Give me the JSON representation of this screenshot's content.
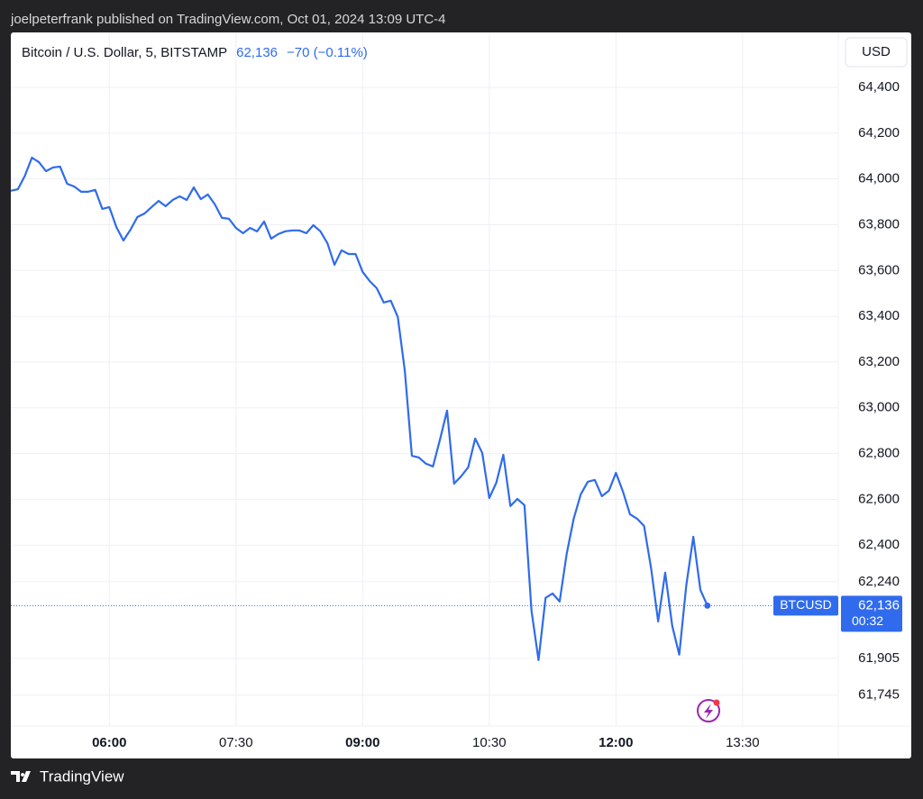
{
  "header": {
    "publisher": "joelpeterfrank published on TradingView.com, Oct 01, 2024 13:09 UTC-4"
  },
  "footer": {
    "brand": "TradingView"
  },
  "chart_data": {
    "type": "line",
    "title": "Bitcoin / U.S. Dollar, 5, BITSTAMP",
    "last_price": 62136,
    "last_price_label": "62,136",
    "change_label": "−70 (−0.11%)",
    "symbol": "BTCUSD",
    "countdown": "00:32",
    "currency": "USD",
    "grid": true,
    "xlim": [
      "04:50",
      "14:38"
    ],
    "xticks": [
      "06:00",
      "07:30",
      "09:00",
      "10:30",
      "12:00",
      "13:30"
    ],
    "ylim": [
      61610,
      64640
    ],
    "yticks": [
      {
        "value": 61745,
        "label": "61,745"
      },
      {
        "value": 61905,
        "label": "61,905"
      },
      {
        "value": 62240,
        "label": "62,240"
      },
      {
        "value": 62400,
        "label": "62,400"
      },
      {
        "value": 62600,
        "label": "62,600"
      },
      {
        "value": 62800,
        "label": "62,800"
      },
      {
        "value": 63000,
        "label": "63,000"
      },
      {
        "value": 63200,
        "label": "63,200"
      },
      {
        "value": 63400,
        "label": "63,400"
      },
      {
        "value": 63600,
        "label": "63,600"
      },
      {
        "value": 63800,
        "label": "63,800"
      },
      {
        "value": 64000,
        "label": "64,000"
      },
      {
        "value": 64200,
        "label": "64,200"
      },
      {
        "value": 64400,
        "label": "64,400"
      }
    ],
    "x": [
      "04:50",
      "04:55",
      "05:00",
      "05:05",
      "05:10",
      "05:15",
      "05:20",
      "05:25",
      "05:30",
      "05:35",
      "05:40",
      "05:45",
      "05:50",
      "05:55",
      "06:00",
      "06:05",
      "06:10",
      "06:15",
      "06:20",
      "06:25",
      "06:30",
      "06:35",
      "06:40",
      "06:45",
      "06:50",
      "06:55",
      "07:00",
      "07:05",
      "07:10",
      "07:15",
      "07:20",
      "07:25",
      "07:30",
      "07:35",
      "07:40",
      "07:45",
      "07:50",
      "07:55",
      "08:00",
      "08:05",
      "08:10",
      "08:15",
      "08:20",
      "08:25",
      "08:30",
      "08:35",
      "08:40",
      "08:45",
      "08:50",
      "08:55",
      "09:00",
      "09:05",
      "09:10",
      "09:15",
      "09:20",
      "09:25",
      "09:30",
      "09:35",
      "09:40",
      "09:45",
      "09:50",
      "09:55",
      "10:00",
      "10:05",
      "10:10",
      "10:15",
      "10:20",
      "10:25",
      "10:30",
      "10:35",
      "10:40",
      "10:45",
      "10:50",
      "10:55",
      "11:00",
      "11:05",
      "11:10",
      "11:15",
      "11:20",
      "11:25",
      "11:30",
      "11:35",
      "11:40",
      "11:45",
      "11:50",
      "11:55",
      "12:00",
      "12:05",
      "12:10",
      "12:15",
      "12:20",
      "12:25",
      "12:30",
      "12:35",
      "12:40",
      "12:45",
      "12:50",
      "12:55",
      "13:00",
      "13:05"
    ],
    "series": [
      {
        "name": "BTCUSD",
        "color": "#2f6bec",
        "values": [
          63948,
          63955,
          64014,
          64093,
          64073,
          64034,
          64050,
          64054,
          63979,
          63967,
          63944,
          63944,
          63952,
          63869,
          63877,
          63790,
          63731,
          63778,
          63834,
          63849,
          63877,
          63904,
          63881,
          63908,
          63924,
          63908,
          63963,
          63912,
          63932,
          63889,
          63830,
          63826,
          63786,
          63763,
          63786,
          63771,
          63814,
          63739,
          63759,
          63771,
          63775,
          63775,
          63763,
          63798,
          63771,
          63719,
          63625,
          63688,
          63672,
          63672,
          63594,
          63554,
          63523,
          63460,
          63468,
          63397,
          63161,
          62791,
          62783,
          62756,
          62744,
          62862,
          62988,
          62669,
          62701,
          62740,
          62866,
          62803,
          62606,
          62673,
          62795,
          62571,
          62602,
          62575,
          62114,
          61898,
          62170,
          62189,
          62154,
          62362,
          62516,
          62622,
          62677,
          62685,
          62614,
          62638,
          62716,
          62634,
          62535,
          62516,
          62484,
          62299,
          62067,
          62280,
          62048,
          61922,
          62225,
          62437,
          62205,
          62136
        ]
      }
    ]
  }
}
